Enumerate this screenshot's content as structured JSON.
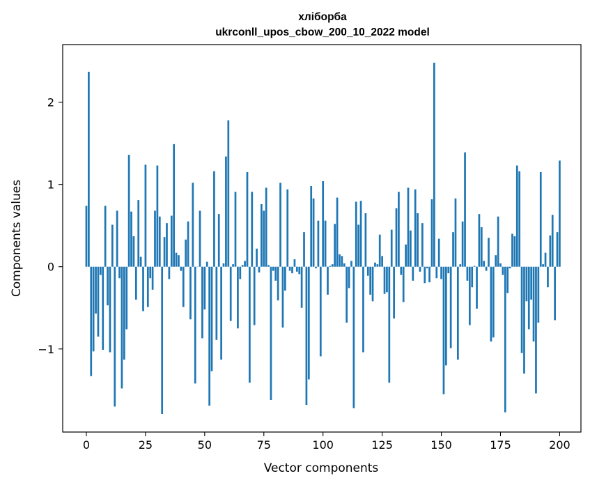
{
  "chart_data": {
    "type": "bar",
    "title_line1": "хліборба",
    "title_line2": "ukrconll_upos_cbow_200_10_2022 model",
    "xlabel": "Vector components",
    "ylabel": "Components values",
    "xlim": [
      -10,
      209
    ],
    "ylim": [
      -2.01,
      2.7
    ],
    "x_ticks": [
      0,
      25,
      50,
      75,
      100,
      125,
      150,
      175,
      200
    ],
    "x_tick_labels": [
      "0",
      "25",
      "50",
      "75",
      "100",
      "125",
      "150",
      "175",
      "200"
    ],
    "y_ticks": [
      -1,
      0,
      1,
      2
    ],
    "y_tick_labels": [
      "−1",
      "0",
      "1",
      "2"
    ],
    "grid": false,
    "bar_color": "#1f77b4",
    "values": [
      0.74,
      2.37,
      -1.33,
      -1.03,
      -0.57,
      -0.85,
      -0.1,
      -1.01,
      0.74,
      -0.47,
      -1.04,
      0.51,
      -1.7,
      0.68,
      -0.14,
      -1.48,
      -1.13,
      -0.76,
      1.36,
      0.67,
      0.37,
      -0.4,
      0.81,
      0.12,
      -0.54,
      1.24,
      -0.49,
      -0.14,
      -0.28,
      0.68,
      1.23,
      0.61,
      -1.79,
      0.36,
      0.53,
      -0.15,
      0.62,
      1.49,
      0.17,
      0.14,
      -0.05,
      -0.49,
      0.33,
      0.55,
      -0.64,
      1.02,
      -1.42,
      0.0,
      0.68,
      -0.87,
      -0.52,
      0.06,
      -1.69,
      -1.27,
      1.16,
      -0.89,
      0.64,
      -1.13,
      0.04,
      1.34,
      1.78,
      -0.66,
      0.03,
      0.91,
      -0.75,
      -0.15,
      0.02,
      0.07,
      1.15,
      -1.41,
      0.91,
      -0.71,
      0.22,
      -0.07,
      0.76,
      0.68,
      0.96,
      0.02,
      -1.62,
      -0.05,
      -0.17,
      -0.41,
      1.02,
      -0.74,
      -0.29,
      0.94,
      -0.05,
      -0.08,
      0.09,
      -0.06,
      -0.09,
      -0.5,
      0.42,
      -1.68,
      -1.37,
      0.98,
      0.83,
      -0.02,
      0.56,
      -1.09,
      1.04,
      0.56,
      -0.34,
      0.01,
      0.03,
      0.52,
      0.84,
      0.15,
      0.13,
      0.04,
      -0.68,
      -0.26,
      0.07,
      -1.72,
      0.79,
      0.51,
      0.8,
      -1.04,
      0.65,
      -0.11,
      -0.34,
      -0.42,
      0.05,
      0.03,
      0.39,
      0.13,
      -0.33,
      -0.31,
      -1.41,
      0.45,
      -0.63,
      0.71,
      0.91,
      -0.1,
      -0.43,
      0.27,
      0.96,
      0.44,
      -0.17,
      0.94,
      0.65,
      -0.06,
      0.53,
      -0.2,
      -0.02,
      -0.19,
      0.82,
      2.48,
      -0.14,
      0.34,
      -0.15,
      -1.55,
      -1.2,
      -0.08,
      -0.99,
      0.42,
      0.83,
      -1.13,
      0.03,
      0.55,
      1.39,
      -0.17,
      -0.71,
      -0.25,
      0.01,
      -0.51,
      0.64,
      0.48,
      0.07,
      -0.05,
      0.35,
      -0.91,
      -0.86,
      0.14,
      0.61,
      0.04,
      -0.1,
      -1.77,
      -0.32,
      -0.02,
      0.4,
      0.37,
      1.23,
      1.16,
      -1.05,
      -1.3,
      -0.42,
      -0.76,
      -0.4,
      -0.91,
      -1.54,
      -0.68,
      1.15,
      0.03,
      0.17,
      -0.25,
      0.38,
      0.63,
      -0.65,
      0.42,
      1.29
    ]
  }
}
